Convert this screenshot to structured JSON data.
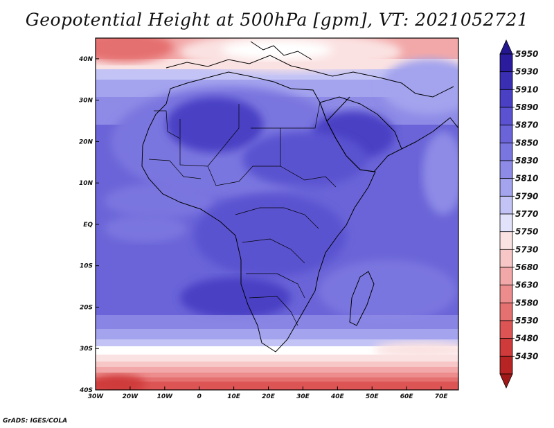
{
  "title": "Geopotential Height at 500hPa [gpm], VT: 2021052721",
  "credit": "GrADS: IGES/COLA",
  "map": {
    "type": "filled-contour-map",
    "region": "Africa",
    "lon_range": [
      -30,
      75
    ],
    "lat_range": [
      -40,
      45
    ],
    "lon_ticks": [
      "30W",
      "20W",
      "10W",
      "0",
      "10E",
      "20E",
      "30E",
      "40E",
      "50E",
      "60E",
      "70E"
    ],
    "lat_ticks": [
      "40N",
      "30N",
      "20N",
      "10N",
      "EQ",
      "10S",
      "20S",
      "30S",
      "40S"
    ]
  },
  "colorbar": {
    "levels": [
      "5950",
      "5930",
      "5910",
      "5890",
      "5870",
      "5850",
      "5830",
      "5810",
      "5790",
      "5770",
      "5750",
      "5730",
      "5680",
      "5630",
      "5580",
      "5530",
      "5480",
      "5430"
    ],
    "colors": [
      "#2a1c9c",
      "#3a2fb3",
      "#4a40c4",
      "#5a52d0",
      "#6a64d8",
      "#7a76df",
      "#8d8be6",
      "#a3a3ee",
      "#c3c3f5",
      "#e2e2fb",
      "#fbe2e2",
      "#f7c6c6",
      "#f2a8a8",
      "#ec8c8c",
      "#e57070",
      "#dc5454",
      "#cf3a3a",
      "#b82424"
    ],
    "top_color": "#24168f",
    "bottom_color": "#a01818"
  }
}
